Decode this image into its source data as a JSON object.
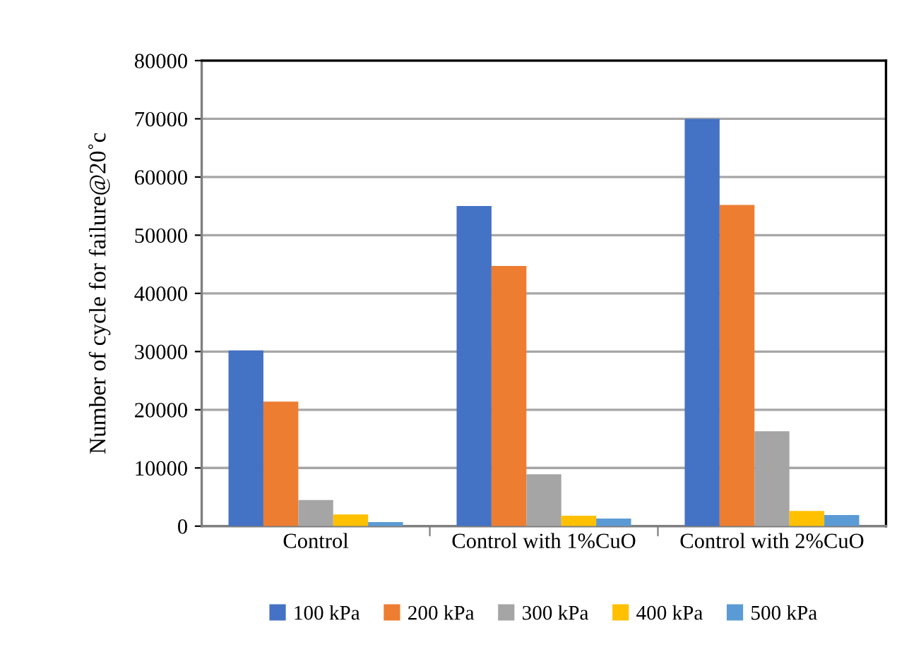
{
  "chart_data": {
    "type": "bar",
    "ylabel": "Number of cycle for failure@20˚c",
    "categories": [
      "Control",
      "Control with 1%CuO",
      "Control with 2%CuO"
    ],
    "series": [
      {
        "name": "100 kPa",
        "color": "#4472c4",
        "values": [
          30200,
          55000,
          70000
        ]
      },
      {
        "name": "200 kPa",
        "color": "#ed7d31",
        "values": [
          21400,
          44700,
          55200
        ]
      },
      {
        "name": "300 kPa",
        "color": "#a5a5a5",
        "values": [
          4500,
          8900,
          16300
        ]
      },
      {
        "name": "400 kPa",
        "color": "#ffc000",
        "values": [
          2000,
          1800,
          2600
        ]
      },
      {
        "name": "500 kPa",
        "color": "#5b9bd5",
        "values": [
          700,
          1300,
          1900
        ]
      }
    ],
    "ylim": [
      0,
      80000
    ],
    "yticks": [
      0,
      10000,
      20000,
      30000,
      40000,
      50000,
      60000,
      70000,
      80000
    ],
    "grid": "y",
    "legend": "bottom"
  }
}
